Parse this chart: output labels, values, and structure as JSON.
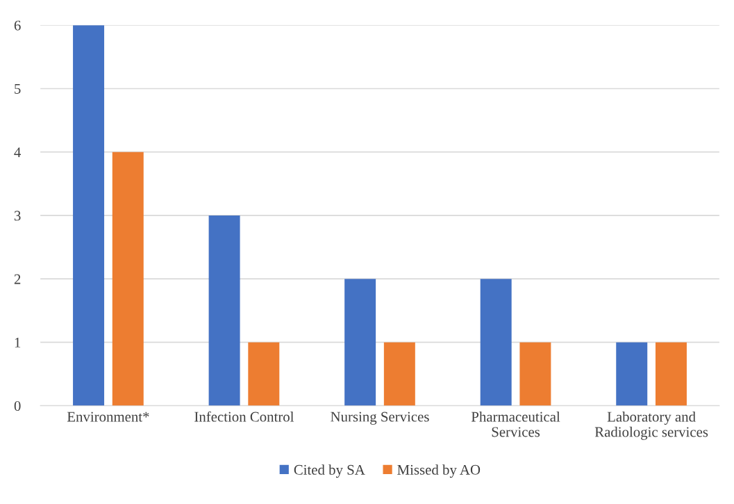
{
  "chart_data": {
    "type": "bar",
    "categories": [
      "Environment*",
      "Infection Control",
      "Nursing Services",
      "Pharmaceutical Services",
      "Laboratory and Radiologic services"
    ],
    "series": [
      {
        "name": "Cited by SA",
        "color": "#4472c4",
        "values": [
          6,
          3,
          2,
          2,
          1
        ]
      },
      {
        "name": "Missed by AO",
        "color": "#ed7d31",
        "values": [
          4,
          1,
          1,
          1,
          1
        ]
      }
    ],
    "ylim": [
      0,
      6
    ],
    "yticks": [
      0,
      1,
      2,
      3,
      4,
      5,
      6
    ],
    "grid": "y",
    "legend": "bottom"
  }
}
